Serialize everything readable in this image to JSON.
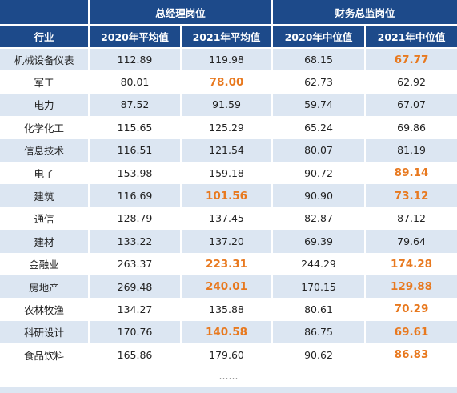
{
  "header": {
    "group_manager": "总经理岗位",
    "group_finance": "财务总监岗位",
    "col_industry": "行业",
    "col_2020_avg": "2020年平均值",
    "col_2021_avg": "2021年平均值",
    "col_2020_median": "2020年中位值",
    "col_2021_median": "2021年中位值"
  },
  "rows": [
    {
      "industry": "机械设备仪表",
      "v2020_avg": "112.89",
      "v2021_avg": "119.98",
      "v2020_med": "68.15",
      "v2021_med": "67.77"
    },
    {
      "industry": "军工",
      "v2020_avg": "80.01",
      "v2021_avg": "78.00",
      "v2020_med": "62.73",
      "v2021_med": "62.92"
    },
    {
      "industry": "电力",
      "v2020_avg": "87.52",
      "v2021_avg": "91.59",
      "v2020_med": "59.74",
      "v2021_med": "67.07"
    },
    {
      "industry": "化学化工",
      "v2020_avg": "115.65",
      "v2021_avg": "125.29",
      "v2020_med": "65.24",
      "v2021_med": "69.86"
    },
    {
      "industry": "信息技术",
      "v2020_avg": "116.51",
      "v2021_avg": "121.54",
      "v2020_med": "80.07",
      "v2021_med": "81.19"
    },
    {
      "industry": "电子",
      "v2020_avg": "153.98",
      "v2021_avg": "159.18",
      "v2020_med": "90.72",
      "v2021_med": "89.14"
    },
    {
      "industry": "建筑",
      "v2020_avg": "116.69",
      "v2021_avg": "101.56",
      "v2020_med": "90.90",
      "v2021_med": "73.12"
    },
    {
      "industry": "通信",
      "v2020_avg": "128.79",
      "v2021_avg": "137.45",
      "v2020_med": "82.87",
      "v2021_med": "87.12"
    },
    {
      "industry": "建材",
      "v2020_avg": "133.22",
      "v2021_avg": "137.20",
      "v2020_med": "69.39",
      "v2021_med": "79.64"
    },
    {
      "industry": "金融业",
      "v2020_avg": "263.37",
      "v2021_avg": "223.31",
      "v2020_med": "244.29",
      "v2021_med": "174.28"
    },
    {
      "industry": "房地产",
      "v2020_avg": "269.48",
      "v2021_avg": "240.01",
      "v2020_med": "170.15",
      "v2021_med": "129.88"
    },
    {
      "industry": "农林牧渔",
      "v2020_avg": "134.27",
      "v2021_avg": "135.88",
      "v2020_med": "80.61",
      "v2021_med": "70.29"
    },
    {
      "industry": "科研设计",
      "v2020_avg": "170.76",
      "v2021_avg": "140.58",
      "v2020_med": "86.75",
      "v2021_med": "69.61"
    },
    {
      "industry": "食品饮料",
      "v2020_avg": "165.86",
      "v2021_avg": "179.60",
      "v2020_med": "90.62",
      "v2021_med": "86.83"
    }
  ],
  "ellipsis": "……",
  "colors": {
    "header_bg": "#1d4a8a",
    "stripe_bg": "#dce6f2",
    "highlight_text": "#e8791f"
  }
}
